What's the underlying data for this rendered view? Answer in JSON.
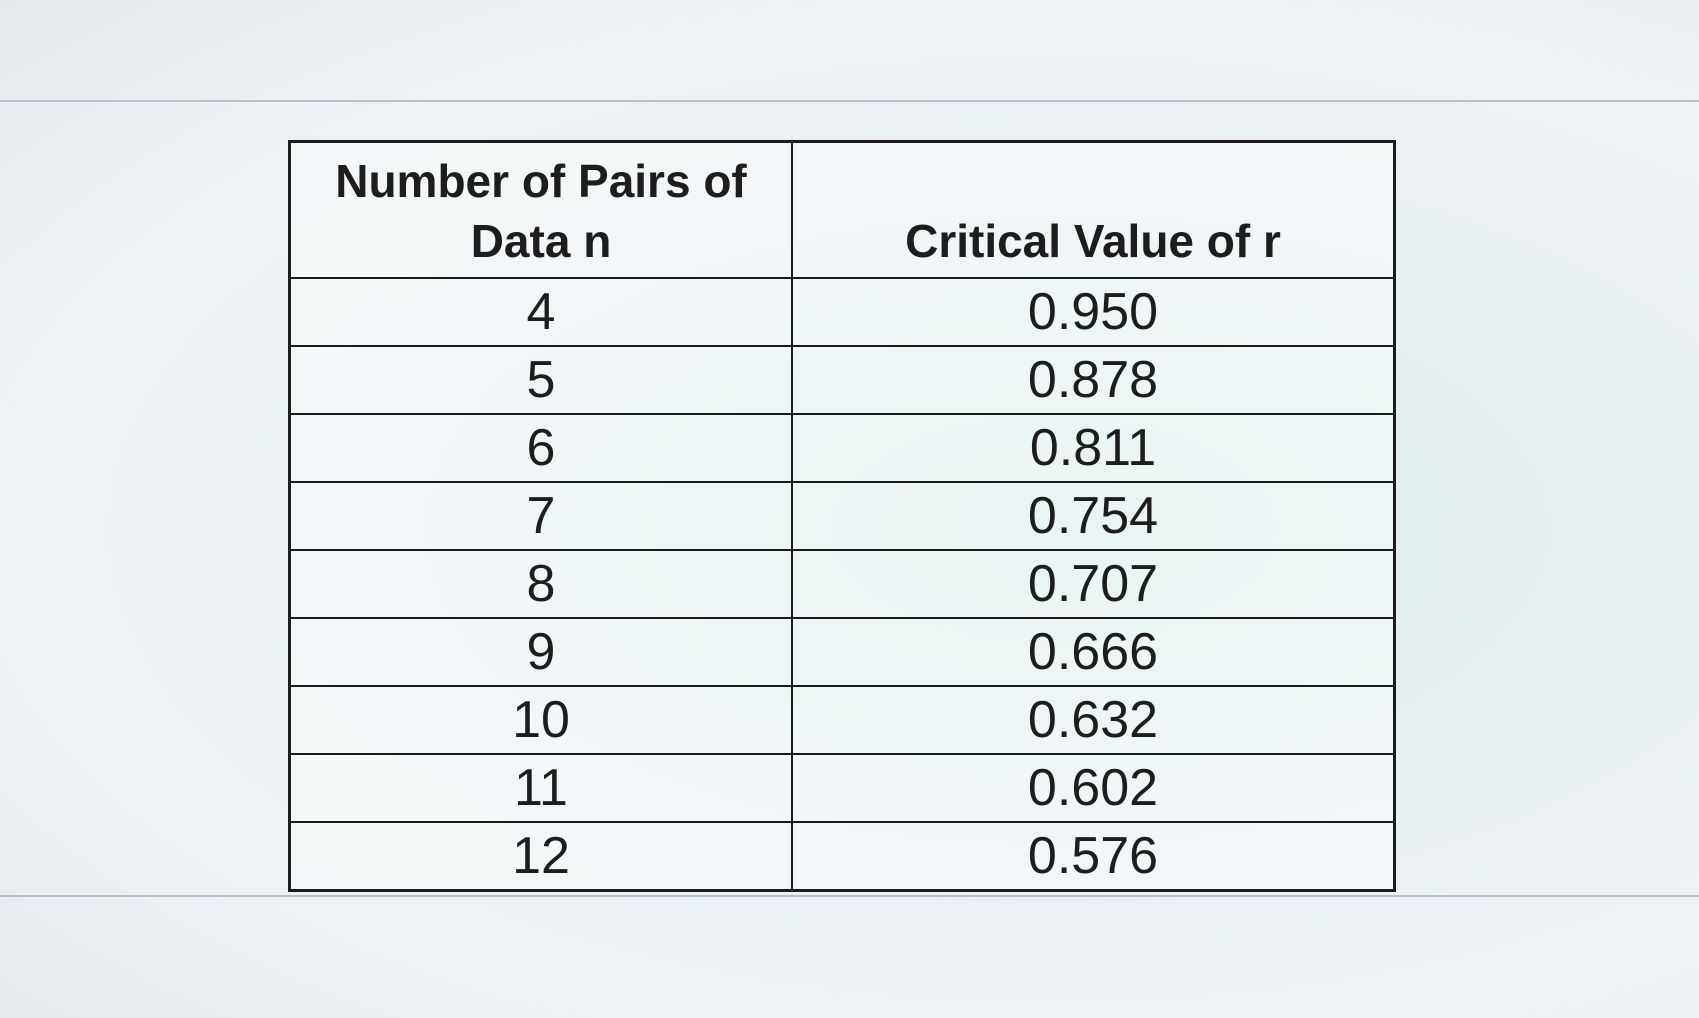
{
  "table": {
    "header": [
      "Number of Pairs of Data n",
      "Critical Value of r"
    ],
    "rows": [
      [
        "4",
        "0.950"
      ],
      [
        "5",
        "0.878"
      ],
      [
        "6",
        "0.811"
      ],
      [
        "7",
        "0.754"
      ],
      [
        "8",
        "0.707"
      ],
      [
        "9",
        "0.666"
      ],
      [
        "10",
        "0.632"
      ],
      [
        "11",
        "0.602"
      ],
      [
        "12",
        "0.576"
      ]
    ]
  }
}
